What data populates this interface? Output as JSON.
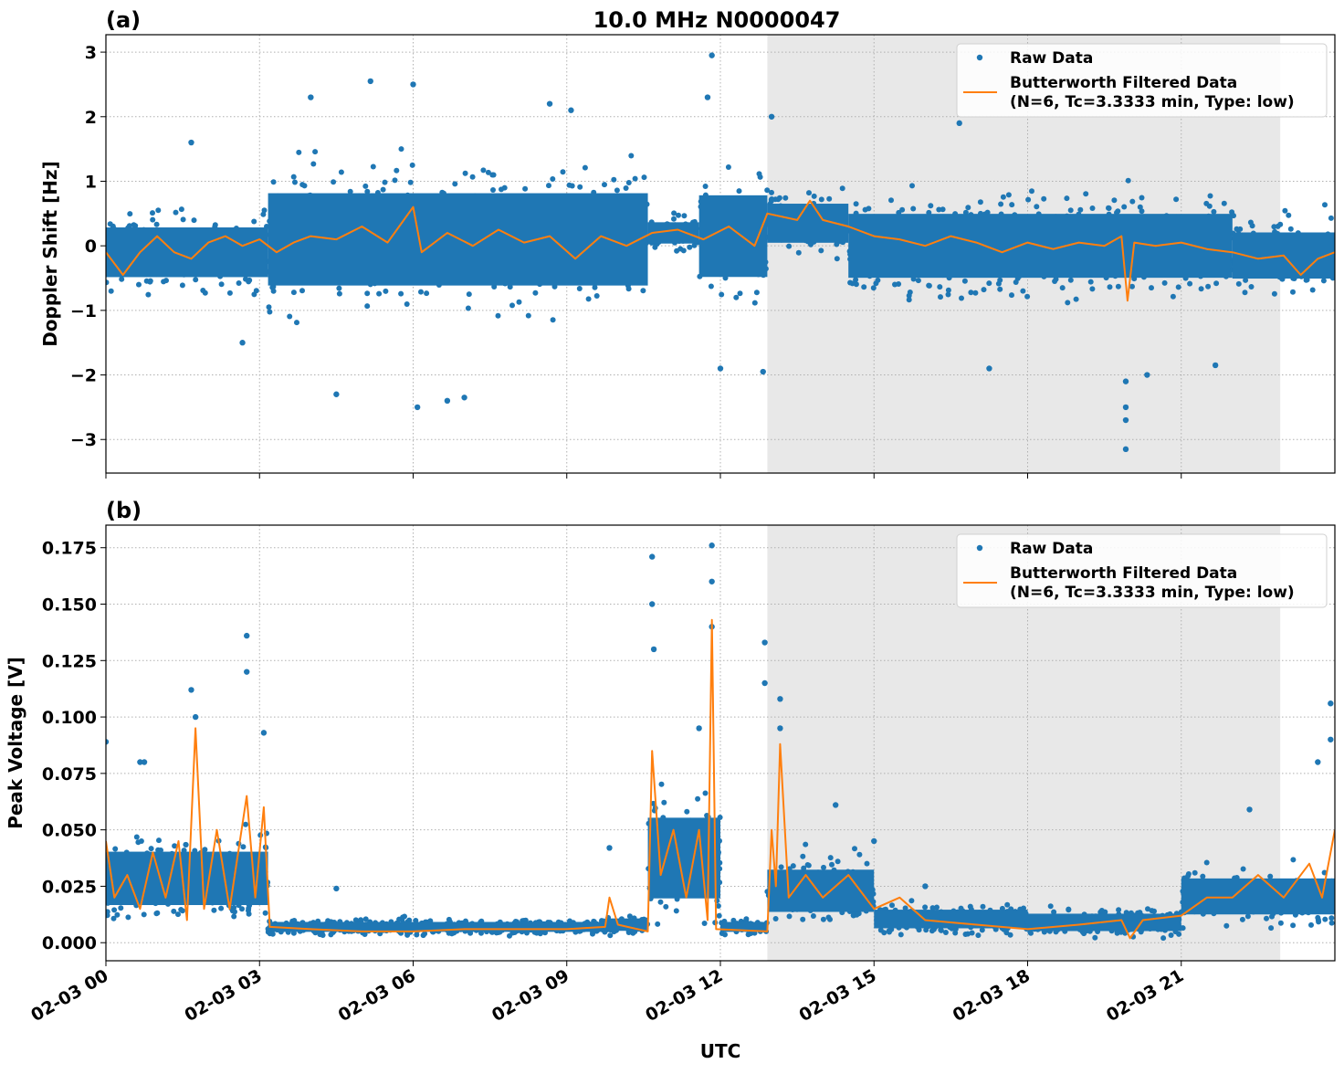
{
  "chart_data": [
    {
      "panel_label": "(a)",
      "title": "10.0 MHz N0000047",
      "type": "scatter+line",
      "xlabel": "",
      "ylabel": "Doppler Shift [Hz]",
      "xlim": [
        "02-03 00:00",
        "02-04 00:00"
      ],
      "ylim": [
        -3.52,
        3.27
      ],
      "yticks": [
        3,
        2,
        1,
        0,
        -1,
        -2,
        -3
      ],
      "ytick_labels": [
        "3",
        "2",
        "1",
        "0",
        "−1",
        "−2",
        "−3"
      ],
      "grid": true,
      "shaded_region": {
        "from": "02-03 12:55",
        "to": "02-03 22:56",
        "color": "#e8e8e8"
      },
      "legend": {
        "placement": "top-right",
        "entries": [
          "Raw Data",
          "Butterworth Filtered Data",
          "(N=6, Tc=3.3333 min, Type: low)"
        ]
      },
      "series": [
        {
          "name": "Raw Data",
          "kind": "scatter",
          "color": "#1f77b4",
          "envelope": [
            {
              "from": "02-03 00:00",
              "to": "02-03 03:10",
              "lo": -0.8,
              "hi": 0.6
            },
            {
              "from": "02-03 03:10",
              "to": "02-03 10:35",
              "lo": -1.2,
              "hi": 1.4
            },
            {
              "from": "02-03 10:35",
              "to": "02-03 11:35",
              "lo": -0.1,
              "hi": 0.5
            },
            {
              "from": "02-03 11:35",
              "to": "02-03 12:55",
              "lo": -1.0,
              "hi": 1.3
            },
            {
              "from": "02-03 12:55",
              "to": "02-03 14:30",
              "lo": -0.2,
              "hi": 0.9
            },
            {
              "from": "02-03 14:30",
              "to": "02-03 22:00",
              "lo": -0.9,
              "hi": 0.9
            },
            {
              "from": "02-03 22:00",
              "to": "02-04 00:00",
              "lo": -0.8,
              "hi": 0.5
            }
          ],
          "outliers": [
            [
              "02-03 04:00",
              2.3
            ],
            [
              "02-03 04:30",
              -2.3
            ],
            [
              "02-03 05:10",
              2.55
            ],
            [
              "02-03 06:00",
              2.5
            ],
            [
              "02-03 06:05",
              -2.5
            ],
            [
              "02-03 06:40",
              -2.4
            ],
            [
              "02-03 07:00",
              -2.35
            ],
            [
              "02-03 08:40",
              2.2
            ],
            [
              "02-03 09:05",
              2.1
            ],
            [
              "02-03 11:50",
              2.95
            ],
            [
              "02-03 11:45",
              2.3
            ],
            [
              "02-03 12:00",
              -1.9
            ],
            [
              "02-03 13:00",
              2.0
            ],
            [
              "02-03 16:40",
              1.9
            ],
            [
              "02-03 17:15",
              -1.9
            ],
            [
              "02-03 19:55",
              -2.1
            ],
            [
              "02-03 19:55",
              -2.5
            ],
            [
              "02-03 19:55",
              -2.7
            ],
            [
              "02-03 19:55",
              -3.15
            ],
            [
              "02-03 20:20",
              -2.0
            ],
            [
              "02-03 21:40",
              -1.85
            ],
            [
              "02-03 12:50",
              -1.95
            ],
            [
              "02-03 02:40",
              -1.5
            ],
            [
              "02-03 01:40",
              1.6
            ]
          ]
        },
        {
          "name": "Butterworth Filtered Data",
          "kind": "line",
          "color": "#ff7f0e",
          "points": [
            [
              "02-03 00:00",
              -0.1
            ],
            [
              "02-03 00:20",
              -0.45
            ],
            [
              "02-03 00:40",
              -0.1
            ],
            [
              "02-03 01:00",
              0.15
            ],
            [
              "02-03 01:20",
              -0.1
            ],
            [
              "02-03 01:40",
              -0.2
            ],
            [
              "02-03 02:00",
              0.05
            ],
            [
              "02-03 02:20",
              0.15
            ],
            [
              "02-03 02:40",
              0.0
            ],
            [
              "02-03 03:00",
              0.1
            ],
            [
              "02-03 03:20",
              -0.1
            ],
            [
              "02-03 03:40",
              0.05
            ],
            [
              "02-03 04:00",
              0.15
            ],
            [
              "02-03 04:30",
              0.1
            ],
            [
              "02-03 05:00",
              0.3
            ],
            [
              "02-03 05:30",
              0.05
            ],
            [
              "02-03 06:00",
              0.6
            ],
            [
              "02-03 06:10",
              -0.1
            ],
            [
              "02-03 06:40",
              0.2
            ],
            [
              "02-03 07:10",
              0.0
            ],
            [
              "02-03 07:40",
              0.25
            ],
            [
              "02-03 08:10",
              0.05
            ],
            [
              "02-03 08:40",
              0.15
            ],
            [
              "02-03 09:10",
              -0.2
            ],
            [
              "02-03 09:40",
              0.15
            ],
            [
              "02-03 10:10",
              0.0
            ],
            [
              "02-03 10:40",
              0.2
            ],
            [
              "02-03 11:10",
              0.25
            ],
            [
              "02-03 11:40",
              0.1
            ],
            [
              "02-03 12:10",
              0.3
            ],
            [
              "02-03 12:40",
              0.0
            ],
            [
              "02-03 12:55",
              0.5
            ],
            [
              "02-03 13:30",
              0.4
            ],
            [
              "02-03 13:45",
              0.7
            ],
            [
              "02-03 14:00",
              0.4
            ],
            [
              "02-03 14:30",
              0.3
            ],
            [
              "02-03 15:00",
              0.15
            ],
            [
              "02-03 15:30",
              0.1
            ],
            [
              "02-03 16:00",
              0.0
            ],
            [
              "02-03 16:30",
              0.15
            ],
            [
              "02-03 17:00",
              0.05
            ],
            [
              "02-03 17:30",
              -0.1
            ],
            [
              "02-03 18:00",
              0.05
            ],
            [
              "02-03 18:30",
              -0.05
            ],
            [
              "02-03 19:00",
              0.05
            ],
            [
              "02-03 19:30",
              0.0
            ],
            [
              "02-03 19:50",
              0.15
            ],
            [
              "02-03 19:57",
              -0.85
            ],
            [
              "02-03 20:05",
              0.05
            ],
            [
              "02-03 20:30",
              0.0
            ],
            [
              "02-03 21:00",
              0.05
            ],
            [
              "02-03 21:30",
              -0.05
            ],
            [
              "02-03 22:00",
              -0.1
            ],
            [
              "02-03 22:30",
              -0.2
            ],
            [
              "02-03 23:00",
              -0.15
            ],
            [
              "02-03 23:20",
              -0.45
            ],
            [
              "02-03 23:40",
              -0.2
            ],
            [
              "02-04 00:00",
              -0.1
            ]
          ]
        }
      ]
    },
    {
      "panel_label": "(b)",
      "type": "scatter+line",
      "xlabel": "UTC",
      "ylabel": "Peak Voltage [V]",
      "xlim": [
        "02-03 00:00",
        "02-04 00:00"
      ],
      "ylim": [
        -0.008,
        0.185
      ],
      "yticks": [
        0.175,
        0.15,
        0.125,
        0.1,
        0.075,
        0.05,
        0.025,
        0.0
      ],
      "ytick_labels": [
        "0.175",
        "0.150",
        "0.125",
        "0.100",
        "0.075",
        "0.050",
        "0.025",
        "0.000"
      ],
      "xtick_labels": [
        "02-03 00",
        "02-03 03",
        "02-03 06",
        "02-03 09",
        "02-03 12",
        "02-03 15",
        "02-03 18",
        "02-03 21"
      ],
      "xticks": [
        "02-03 00:00",
        "02-03 03:00",
        "02-03 06:00",
        "02-03 09:00",
        "02-03 12:00",
        "02-03 15:00",
        "02-03 18:00",
        "02-03 21:00"
      ],
      "grid": true,
      "shaded_region": {
        "from": "02-03 12:55",
        "to": "02-03 22:56",
        "color": "#e8e8e8"
      },
      "legend": {
        "placement": "top-right",
        "entries": [
          "Raw Data",
          "Butterworth Filtered Data",
          "(N=6, Tc=3.3333 min, Type: low)"
        ]
      },
      "series": [
        {
          "name": "Raw Data",
          "kind": "scatter",
          "color": "#1f77b4",
          "envelope": [
            {
              "from": "02-03 00:00",
              "to": "02-03 03:10",
              "lo": 0.007,
              "hi": 0.05
            },
            {
              "from": "02-03 03:10",
              "to": "02-03 09:45",
              "lo": 0.003,
              "hi": 0.011
            },
            {
              "from": "02-03 09:45",
              "to": "02-03 10:35",
              "lo": 0.003,
              "hi": 0.013
            },
            {
              "from": "02-03 10:35",
              "to": "02-03 12:00",
              "lo": 0.005,
              "hi": 0.07
            },
            {
              "from": "02-03 12:00",
              "to": "02-03 12:55",
              "lo": 0.003,
              "hi": 0.011
            },
            {
              "from": "02-03 12:55",
              "to": "02-03 15:00",
              "lo": 0.006,
              "hi": 0.04
            },
            {
              "from": "02-03 15:00",
              "to": "02-03 18:00",
              "lo": 0.003,
              "hi": 0.018
            },
            {
              "from": "02-03 18:00",
              "to": "02-03 21:00",
              "lo": 0.002,
              "hi": 0.016
            },
            {
              "from": "02-03 21:00",
              "to": "02-04 00:00",
              "lo": 0.006,
              "hi": 0.035
            }
          ],
          "outliers": [
            [
              "02-03 00:00",
              0.089
            ],
            [
              "02-03 01:40",
              0.112
            ],
            [
              "02-03 01:45",
              0.1
            ],
            [
              "02-03 02:45",
              0.136
            ],
            [
              "02-03 02:45",
              0.12
            ],
            [
              "02-03 03:05",
              0.093
            ],
            [
              "02-03 00:40",
              0.08
            ],
            [
              "02-03 00:45",
              0.08
            ],
            [
              "02-03 09:50",
              0.042
            ],
            [
              "02-03 04:30",
              0.024
            ],
            [
              "02-03 10:40",
              0.171
            ],
            [
              "02-03 10:40",
              0.15
            ],
            [
              "02-03 10:42",
              0.13
            ],
            [
              "02-03 11:50",
              0.176
            ],
            [
              "02-03 11:50",
              0.16
            ],
            [
              "02-03 11:50",
              0.14
            ],
            [
              "02-03 11:35",
              0.095
            ],
            [
              "02-03 12:52",
              0.133
            ],
            [
              "02-03 12:52",
              0.115
            ],
            [
              "02-03 13:10",
              0.108
            ],
            [
              "02-03 13:10",
              0.095
            ],
            [
              "02-03 14:15",
              0.061
            ],
            [
              "02-03 15:00",
              0.045
            ],
            [
              "02-03 16:00",
              0.025
            ],
            [
              "02-03 22:20",
              0.059
            ],
            [
              "02-03 23:40",
              0.08
            ],
            [
              "02-03 23:55",
              0.106
            ],
            [
              "02-03 23:55",
              0.09
            ]
          ]
        },
        {
          "name": "Butterworth Filtered Data",
          "kind": "line",
          "color": "#ff7f0e",
          "points": [
            [
              "02-03 00:00",
              0.045
            ],
            [
              "02-03 00:10",
              0.02
            ],
            [
              "02-03 00:25",
              0.03
            ],
            [
              "02-03 00:40",
              0.015
            ],
            [
              "02-03 00:55",
              0.04
            ],
            [
              "02-03 01:10",
              0.02
            ],
            [
              "02-03 01:25",
              0.045
            ],
            [
              "02-03 01:35",
              0.01
            ],
            [
              "02-03 01:45",
              0.095
            ],
            [
              "02-03 01:55",
              0.015
            ],
            [
              "02-03 02:10",
              0.05
            ],
            [
              "02-03 02:25",
              0.015
            ],
            [
              "02-03 02:45",
              0.065
            ],
            [
              "02-03 02:55",
              0.02
            ],
            [
              "02-03 03:05",
              0.06
            ],
            [
              "02-03 03:12",
              0.007
            ],
            [
              "02-03 04:00",
              0.006
            ],
            [
              "02-03 05:00",
              0.005
            ],
            [
              "02-03 06:00",
              0.005
            ],
            [
              "02-03 07:00",
              0.006
            ],
            [
              "02-03 08:00",
              0.006
            ],
            [
              "02-03 09:00",
              0.006
            ],
            [
              "02-03 09:45",
              0.007
            ],
            [
              "02-03 09:50",
              0.02
            ],
            [
              "02-03 10:00",
              0.008
            ],
            [
              "02-03 10:35",
              0.005
            ],
            [
              "02-03 10:40",
              0.085
            ],
            [
              "02-03 10:50",
              0.03
            ],
            [
              "02-03 11:05",
              0.05
            ],
            [
              "02-03 11:20",
              0.02
            ],
            [
              "02-03 11:35",
              0.05
            ],
            [
              "02-03 11:45",
              0.01
            ],
            [
              "02-03 11:50",
              0.143
            ],
            [
              "02-03 11:55",
              0.006
            ],
            [
              "02-03 12:55",
              0.005
            ],
            [
              "02-03 13:00",
              0.05
            ],
            [
              "02-03 13:05",
              0.025
            ],
            [
              "02-03 13:10",
              0.088
            ],
            [
              "02-03 13:20",
              0.02
            ],
            [
              "02-03 13:40",
              0.03
            ],
            [
              "02-03 14:00",
              0.02
            ],
            [
              "02-03 14:30",
              0.03
            ],
            [
              "02-03 15:00",
              0.015
            ],
            [
              "02-03 15:30",
              0.02
            ],
            [
              "02-03 16:00",
              0.01
            ],
            [
              "02-03 17:00",
              0.008
            ],
            [
              "02-03 18:00",
              0.006
            ],
            [
              "02-03 19:00",
              0.008
            ],
            [
              "02-03 19:50",
              0.01
            ],
            [
              "02-03 20:00",
              0.002
            ],
            [
              "02-03 20:15",
              0.01
            ],
            [
              "02-03 21:00",
              0.012
            ],
            [
              "02-03 21:30",
              0.02
            ],
            [
              "02-03 22:00",
              0.02
            ],
            [
              "02-03 22:30",
              0.03
            ],
            [
              "02-03 23:00",
              0.02
            ],
            [
              "02-03 23:30",
              0.035
            ],
            [
              "02-03 23:45",
              0.02
            ],
            [
              "02-04 00:00",
              0.05
            ]
          ]
        }
      ]
    }
  ]
}
